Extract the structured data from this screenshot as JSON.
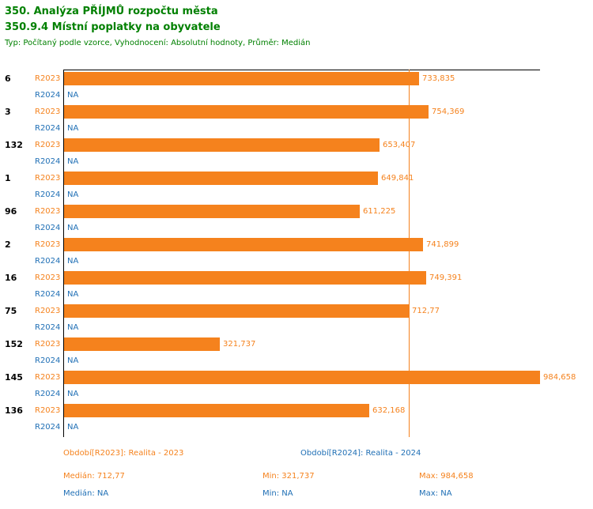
{
  "header": {
    "title": "350. Analýza PŘÍJMŮ rozpočtu města",
    "subtitle": "350.9.4 Místní poplatky na obyvatele",
    "meta": "Typ: Počítaný podle vzorce, Vyhodnocení: Absolutní hodnoty, Průměr: Medián"
  },
  "chart_data": {
    "type": "bar",
    "orientation": "horizontal",
    "title": "350.9.4 Místní poplatky na obyvatele",
    "categories": [
      "6",
      "3",
      "132",
      "1",
      "96",
      "2",
      "16",
      "75",
      "152",
      "145",
      "136"
    ],
    "series": [
      {
        "name": "R2023",
        "color": "#F5821D",
        "values": [
          733.835,
          754.369,
          653.407,
          649.841,
          611.225,
          741.899,
          749.391,
          712.77,
          321.737,
          984.658,
          632.168
        ],
        "labels": [
          "733,835",
          "754,369",
          "653,407",
          "649,841",
          "611,225",
          "741,899",
          "749,391",
          "712,77",
          "321,737",
          "984,658",
          "632,168"
        ]
      },
      {
        "name": "R2024",
        "color": "#1F6FB5",
        "values": [
          null,
          null,
          null,
          null,
          null,
          null,
          null,
          null,
          null,
          null,
          null
        ],
        "labels": [
          "NA",
          "NA",
          "NA",
          "NA",
          "NA",
          "NA",
          "NA",
          "NA",
          "NA",
          "NA",
          "NA"
        ]
      }
    ],
    "xlim": [
      0,
      984.658
    ],
    "median": {
      "value": 712.77,
      "label": "712,77"
    },
    "grid": false,
    "axis_color": "#000000"
  },
  "legend": {
    "r2023": {
      "period": "Období[R2023]: Realita - 2023",
      "median": "Medián: 712,77",
      "min": "Min: 321,737",
      "max": "Max: 984,658"
    },
    "r2024": {
      "period": "Období[R2024]: Realita - 2024",
      "median": "Medián: NA",
      "min": "Min: NA",
      "max": "Max: NA"
    }
  },
  "colors": {
    "title_green": "#008000",
    "bar_orange": "#F5821D",
    "r2024_blue": "#1F6FB5",
    "axis_black": "#000000"
  }
}
